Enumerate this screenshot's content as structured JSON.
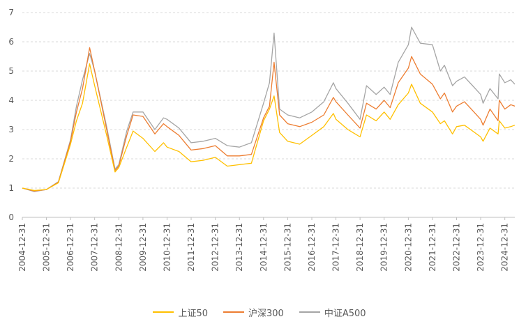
{
  "chart_data": {
    "type": "line",
    "title": "",
    "xlabel": "",
    "ylabel": "",
    "ylim": [
      0,
      7
    ],
    "y_ticks": [
      "0",
      "1",
      "2",
      "3",
      "4",
      "5",
      "6",
      "7"
    ],
    "x_tick_labels": [
      "2004-12-31",
      "2005-12-31",
      "2006-12-31",
      "2007-12-31",
      "2008-12-31",
      "2009-12-31",
      "2010-12-31",
      "2011-12-31",
      "2012-12-31",
      "2013-12-31",
      "2014-12-31",
      "2015-12-31",
      "2016-12-31",
      "2017-12-31",
      "2018-12-31",
      "2019-12-31",
      "2020-12-31",
      "2021-12-31",
      "2022-12-31",
      "2023-12-31",
      "2024-12-31"
    ],
    "grid": "horizontal",
    "legend_position": "bottom",
    "x": [
      "2004-12-31",
      "2005-06-30",
      "2005-12-31",
      "2006-06-30",
      "2006-12-31",
      "2007-03-31",
      "2007-06-30",
      "2007-10-16",
      "2007-12-31",
      "2008-06-30",
      "2008-11-04",
      "2008-12-31",
      "2009-04-30",
      "2009-08-04",
      "2009-12-31",
      "2010-06-30",
      "2010-11-08",
      "2010-12-31",
      "2011-06-30",
      "2011-12-31",
      "2012-06-30",
      "2012-12-31",
      "2013-06-30",
      "2013-12-31",
      "2014-06-30",
      "2014-12-31",
      "2015-03-31",
      "2015-06-08",
      "2015-08-31",
      "2015-12-31",
      "2016-06-30",
      "2016-12-31",
      "2017-06-30",
      "2017-11-22",
      "2017-12-31",
      "2018-06-30",
      "2018-12-31",
      "2019-04-08",
      "2019-08-31",
      "2019-12-31",
      "2020-03-31",
      "2020-07-31",
      "2020-12-31",
      "2021-02-18",
      "2021-06-30",
      "2021-12-31",
      "2022-04-30",
      "2022-06-30",
      "2022-10-31",
      "2022-12-31",
      "2023-04-30",
      "2023-08-31",
      "2023-12-31",
      "2024-02-05",
      "2024-05-20",
      "2024-09-20",
      "2024-10-08",
      "2024-12-31",
      "2025-03-31",
      "2025-05-31"
    ],
    "series": [
      {
        "name": "上证50",
        "color": "#FFC000",
        "values": [
          1.0,
          0.92,
          0.95,
          1.18,
          2.5,
          3.3,
          3.9,
          5.25,
          4.5,
          2.8,
          1.55,
          1.7,
          2.4,
          2.95,
          2.7,
          2.25,
          2.55,
          2.4,
          2.25,
          1.9,
          1.95,
          2.05,
          1.75,
          1.8,
          1.85,
          3.3,
          3.7,
          4.15,
          2.9,
          2.6,
          2.5,
          2.8,
          3.1,
          3.55,
          3.35,
          3.0,
          2.75,
          3.5,
          3.3,
          3.6,
          3.35,
          3.85,
          4.25,
          4.55,
          3.9,
          3.6,
          3.2,
          3.3,
          2.85,
          3.1,
          3.15,
          2.95,
          2.75,
          2.6,
          3.05,
          2.85,
          3.3,
          3.05,
          3.1,
          3.15
        ]
      },
      {
        "name": "沪深300",
        "color": "#ED7D31",
        "values": [
          1.0,
          0.9,
          0.95,
          1.2,
          2.6,
          3.6,
          4.4,
          5.8,
          5.0,
          3.0,
          1.6,
          1.75,
          2.8,
          3.5,
          3.45,
          2.85,
          3.2,
          3.1,
          2.8,
          2.3,
          2.35,
          2.45,
          2.1,
          2.1,
          2.15,
          3.4,
          3.8,
          5.3,
          3.5,
          3.2,
          3.1,
          3.25,
          3.5,
          4.1,
          3.95,
          3.5,
          3.05,
          3.9,
          3.7,
          4.0,
          3.75,
          4.6,
          5.1,
          5.5,
          4.9,
          4.55,
          4.05,
          4.25,
          3.6,
          3.8,
          3.95,
          3.65,
          3.35,
          3.15,
          3.7,
          3.3,
          4.0,
          3.7,
          3.85,
          3.8
        ]
      },
      {
        "name": "中证A500",
        "color": "#A5A5A5",
        "values": [
          1.0,
          0.88,
          0.95,
          1.22,
          2.65,
          3.8,
          4.7,
          5.6,
          5.0,
          3.1,
          1.65,
          1.8,
          2.95,
          3.6,
          3.6,
          3.0,
          3.4,
          3.35,
          3.05,
          2.55,
          2.6,
          2.7,
          2.45,
          2.4,
          2.55,
          3.9,
          4.6,
          6.3,
          3.7,
          3.5,
          3.4,
          3.6,
          3.95,
          4.6,
          4.4,
          3.9,
          3.35,
          4.5,
          4.2,
          4.45,
          4.2,
          5.3,
          5.9,
          6.5,
          5.95,
          5.9,
          5.0,
          5.2,
          4.5,
          4.65,
          4.8,
          4.5,
          4.2,
          3.9,
          4.4,
          4.05,
          4.9,
          4.6,
          4.7,
          4.55
        ]
      }
    ]
  }
}
